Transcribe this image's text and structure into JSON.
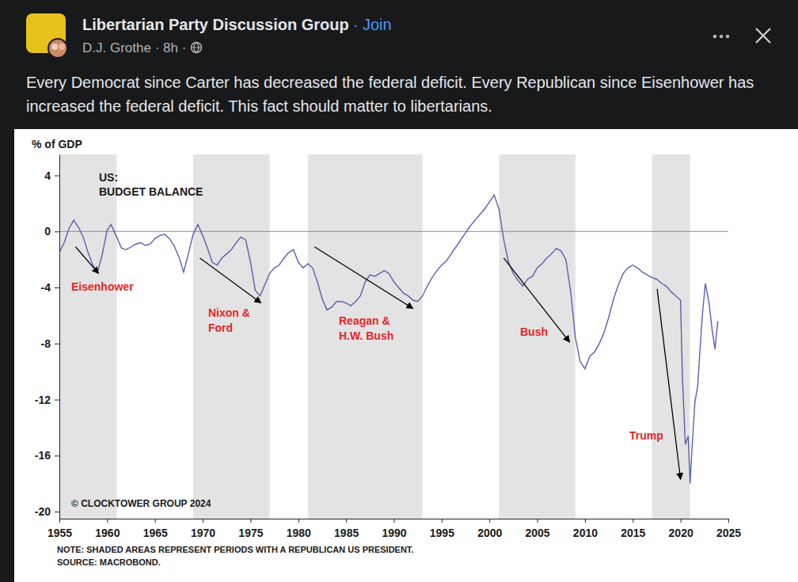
{
  "post": {
    "group": "Libertarian Party Discussion Group",
    "join": "· Join",
    "meta": "D.J. Grothe · 8h ·",
    "text": "Every Democrat since Carter has decreased the federal deficit. Every Republican since Eisenhower has increased the federal deficit. This fact should matter to libertarians."
  },
  "chart_data": {
    "type": "line",
    "title": [
      "US:",
      "BUDGET BALANCE"
    ],
    "ylabel": "% of GDP",
    "color": "#5b5fae",
    "x": [
      1955.0,
      1955.5,
      1956.0,
      1956.5,
      1957.0,
      1957.5,
      1958.0,
      1958.5,
      1959.0,
      1959.5,
      1960.0,
      1960.4,
      1961.0,
      1961.5,
      1962.0,
      1962.5,
      1963.0,
      1963.5,
      1964.0,
      1964.5,
      1965.0,
      1965.5,
      1966.0,
      1966.5,
      1967.0,
      1967.5,
      1968.0,
      1968.5,
      1969.0,
      1969.5,
      1970.0,
      1970.5,
      1971.0,
      1971.5,
      1972.0,
      1972.5,
      1973.0,
      1973.5,
      1974.0,
      1974.5,
      1975.0,
      1975.5,
      1976.0,
      1976.5,
      1977.0,
      1977.5,
      1978.0,
      1978.5,
      1979.0,
      1979.5,
      1980.0,
      1980.5,
      1981.0,
      1981.5,
      1982.0,
      1982.5,
      1983.0,
      1983.5,
      1984.0,
      1984.5,
      1985.0,
      1985.5,
      1986.0,
      1986.5,
      1987.0,
      1987.5,
      1988.0,
      1988.5,
      1989.0,
      1989.5,
      1990.0,
      1990.5,
      1991.0,
      1991.5,
      1992.0,
      1992.5,
      1993.0,
      1993.5,
      1994.0,
      1994.5,
      1995.0,
      1995.5,
      1996.0,
      1996.5,
      1997.0,
      1997.5,
      1998.0,
      1998.5,
      1999.0,
      1999.5,
      2000.0,
      2000.5,
      2001.0,
      2001.5,
      2002.0,
      2002.5,
      2003.0,
      2003.5,
      2004.0,
      2004.5,
      2005.0,
      2005.5,
      2006.0,
      2006.5,
      2007.0,
      2007.5,
      2008.0,
      2008.5,
      2009.0,
      2009.5,
      2010.0,
      2010.5,
      2011.0,
      2011.5,
      2012.0,
      2012.5,
      2013.0,
      2013.5,
      2014.0,
      2014.5,
      2015.0,
      2015.5,
      2016.0,
      2016.5,
      2017.0,
      2017.5,
      2018.0,
      2018.5,
      2019.0,
      2019.5,
      2020.0,
      2020.2,
      2020.5,
      2020.8,
      2021.0,
      2021.2,
      2021.5,
      2021.8,
      2022.0,
      2022.3,
      2022.6,
      2023.0,
      2023.3,
      2023.6,
      2023.9
    ],
    "values": [
      -1.5,
      -0.8,
      0.2,
      0.8,
      0.3,
      -0.4,
      -1.5,
      -2.4,
      -2.9,
      -1.6,
      0.1,
      0.5,
      -0.4,
      -1.2,
      -1.3,
      -1.1,
      -0.9,
      -0.8,
      -1.0,
      -0.9,
      -0.5,
      -0.3,
      -0.2,
      -0.5,
      -1.0,
      -1.8,
      -2.9,
      -1.6,
      -0.2,
      0.5,
      -0.3,
      -1.2,
      -2.2,
      -2.4,
      -1.9,
      -1.6,
      -1.3,
      -0.8,
      -0.4,
      -0.6,
      -2.2,
      -4.2,
      -4.6,
      -3.8,
      -3.0,
      -2.6,
      -2.4,
      -1.9,
      -1.5,
      -1.3,
      -2.2,
      -2.6,
      -2.3,
      -2.6,
      -3.6,
      -4.8,
      -5.6,
      -5.4,
      -5.0,
      -5.0,
      -5.1,
      -5.3,
      -5.0,
      -4.6,
      -3.6,
      -3.1,
      -3.2,
      -3.0,
      -2.8,
      -3.0,
      -3.6,
      -4.0,
      -4.4,
      -4.6,
      -4.9,
      -5.0,
      -4.6,
      -3.9,
      -3.3,
      -2.8,
      -2.4,
      -2.1,
      -1.6,
      -1.1,
      -0.6,
      -0.1,
      0.4,
      0.8,
      1.2,
      1.6,
      2.1,
      2.6,
      1.6,
      -0.6,
      -2.2,
      -3.0,
      -3.5,
      -3.9,
      -3.4,
      -3.2,
      -2.6,
      -2.3,
      -1.9,
      -1.6,
      -1.2,
      -1.4,
      -2.0,
      -4.3,
      -7.6,
      -9.3,
      -9.8,
      -8.9,
      -8.6,
      -8.0,
      -7.2,
      -6.1,
      -4.8,
      -3.8,
      -3.0,
      -2.6,
      -2.4,
      -2.6,
      -2.9,
      -3.1,
      -3.3,
      -3.4,
      -3.7,
      -3.9,
      -4.3,
      -4.6,
      -4.9,
      -10.5,
      -15.2,
      -14.6,
      -18.0,
      -15.5,
      -12.2,
      -11.0,
      -8.8,
      -5.8,
      -3.7,
      -5.2,
      -7.0,
      -8.4,
      -6.4
    ],
    "xlim": [
      1955,
      2025
    ],
    "xticks": [
      1955,
      1960,
      1965,
      1970,
      1975,
      1980,
      1985,
      1990,
      1995,
      2000,
      2005,
      2010,
      2015,
      2020,
      2025
    ],
    "ylim": [
      -20.5,
      5.5
    ],
    "yticks": [
      4,
      0,
      -4,
      -8,
      -12,
      -16,
      -20
    ],
    "reference_lines": [
      0
    ],
    "shaded_periods": [
      {
        "start": 1955,
        "end": 1961
      },
      {
        "start": 1969,
        "end": 1977
      },
      {
        "start": 1981,
        "end": 1993
      },
      {
        "start": 2001,
        "end": 2009
      },
      {
        "start": 2017,
        "end": 2021
      }
    ],
    "annotations": [
      {
        "lines": [
          "Eisenhower"
        ]
      },
      {
        "lines": [
          "Nixon &",
          "Ford"
        ]
      },
      {
        "lines": [
          "Reagan &",
          "H.W. Bush"
        ]
      },
      {
        "lines": [
          "Bush"
        ]
      },
      {
        "lines": [
          "Trump"
        ]
      }
    ],
    "copyright": "© CLOCKTOWER GROUP 2024",
    "note": "NOTE: SHADED AREAS REPRESENT PERIODS WITH A REPUBLICAN US PRESIDENT.",
    "source": "SOURCE: MACROBOND.",
    "grid": false
  }
}
